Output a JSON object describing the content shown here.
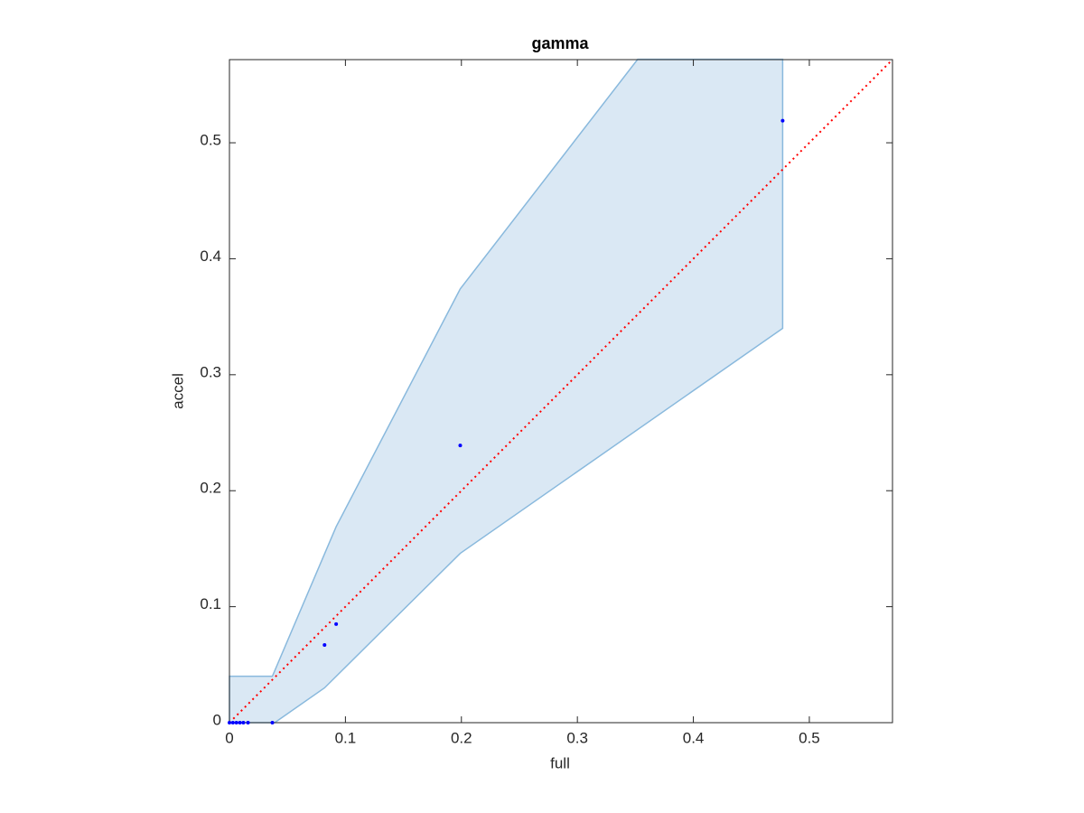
{
  "chart_data": {
    "type": "scatter",
    "title": "gamma",
    "x_label": "full",
    "y_label": "accel",
    "x": [
      0,
      0.003,
      0.006,
      0.009,
      0.012,
      0.016,
      0.037,
      0.082,
      0.092,
      0.199,
      0.477
    ],
    "values": [
      0,
      0,
      0,
      0,
      0,
      0,
      0,
      0.067,
      0.085,
      0.239,
      0.519
    ],
    "color": "#0000ff",
    "band": {
      "x": [
        0,
        0.037,
        0.092,
        0.199,
        0.352,
        0.477,
        0.477,
        0.199,
        0.082,
        0.039,
        0
      ],
      "y": [
        0.04,
        0.04,
        0.169,
        0.374,
        0.572,
        0.572,
        0.34,
        0.146,
        0.03,
        0,
        0
      ],
      "fill": "#dae8f4",
      "stroke": "#89b9dd"
    },
    "reference": {
      "x": [
        0,
        0.5717
      ],
      "y": [
        0,
        0.5717
      ],
      "color": "#ff0000",
      "dotted": true
    },
    "xlim": [
      0,
      0.5717
    ],
    "ylim": [
      0,
      0.5717
    ],
    "xticks": [
      0,
      0.1,
      0.2,
      0.3,
      0.4,
      0.5
    ],
    "yticks": [
      0,
      0.1,
      0.2,
      0.3,
      0.4,
      0.5
    ],
    "grid": false
  }
}
